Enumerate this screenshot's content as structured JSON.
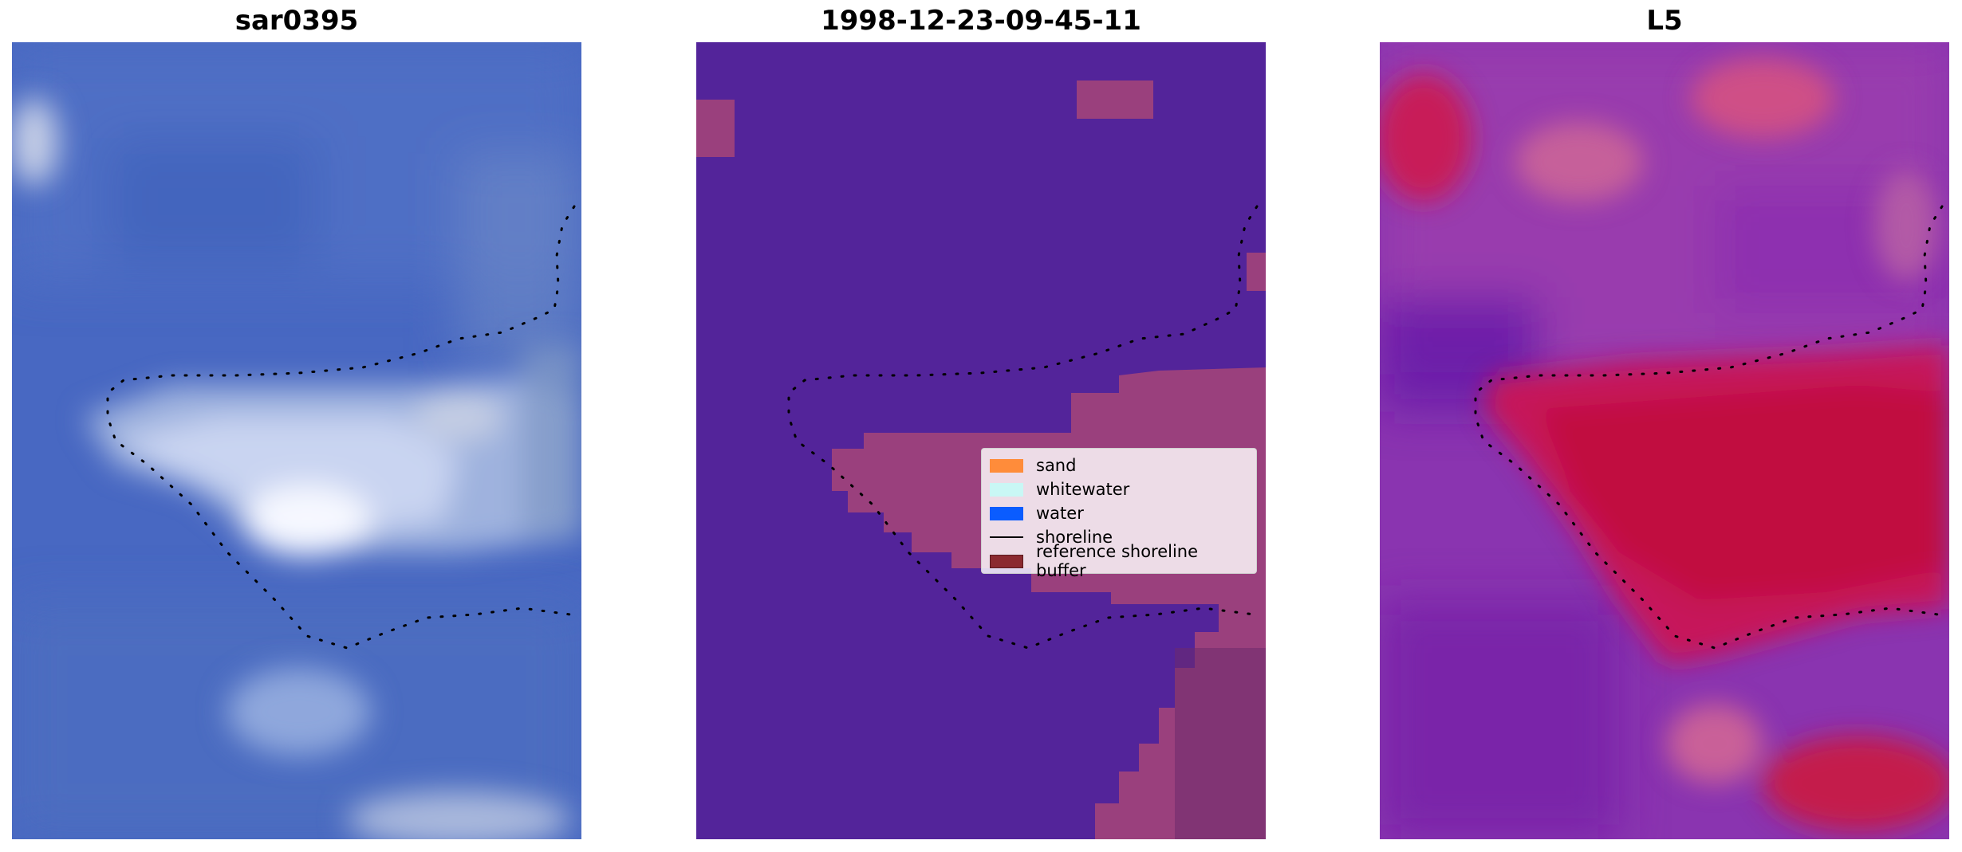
{
  "panels": [
    {
      "title": "sar0395"
    },
    {
      "title": "1998-12-23-09-45-11"
    },
    {
      "title": "L5"
    }
  ],
  "legend": {
    "items": [
      {
        "label": "sand",
        "kind": "patch",
        "color": "#ff8c3a"
      },
      {
        "label": "whitewater",
        "kind": "patch",
        "color": "#c9f7f5"
      },
      {
        "label": "water",
        "kind": "patch",
        "color": "#0a5cff"
      },
      {
        "label": "shoreline",
        "kind": "line",
        "color": "#000000"
      },
      {
        "label": "reference shoreline buffer",
        "kind": "patch",
        "color": "#8b2a30"
      }
    ]
  },
  "colors": {
    "rgb_background": "#4a68c0",
    "classified_water": "#53249a",
    "buffer_overlay": "#a2447a",
    "index_low": "#7a2fb0",
    "index_high": "#c1113e"
  }
}
